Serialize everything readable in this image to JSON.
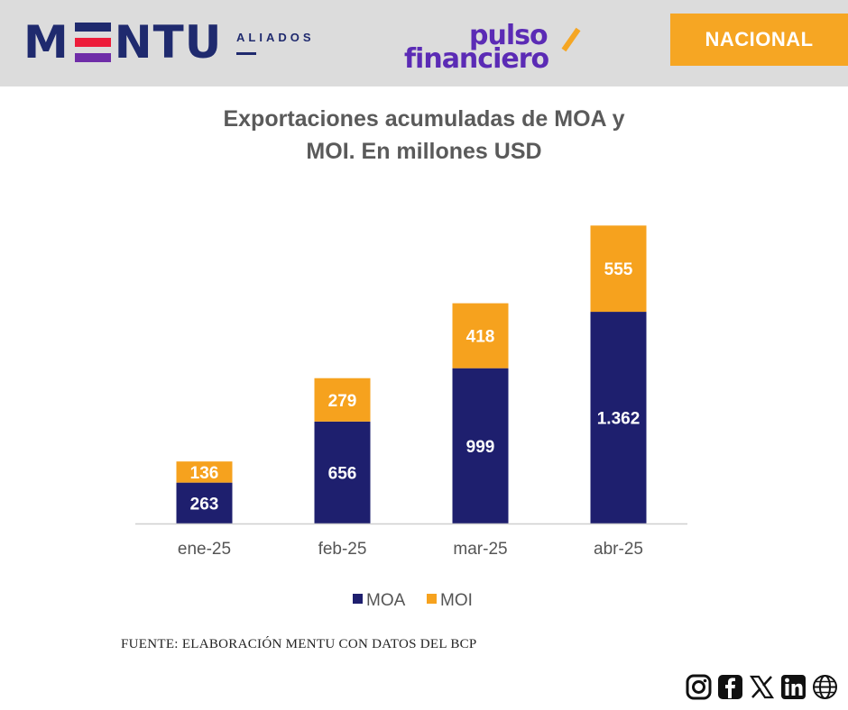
{
  "header": {
    "brand_name": "MENTU",
    "brand_left": "M",
    "brand_right": "NTU",
    "brand_sub": "ALIADOS",
    "partner_line1": "pulso",
    "partner_line2": "financiero",
    "section_badge": "NACIONAL"
  },
  "chart_data": {
    "type": "bar",
    "stacked": true,
    "title_line1": "Exportaciones acumuladas de MOA y",
    "title_line2": "MOI. En millones USD",
    "categories": [
      "ene-25",
      "feb-25",
      "mar-25",
      "abr-25"
    ],
    "series": [
      {
        "name": "MOA",
        "values": [
          263,
          656,
          999,
          1362
        ],
        "labels": [
          "263",
          "656",
          "999",
          "1.362"
        ],
        "color": "#1e1f6e"
      },
      {
        "name": "MOI",
        "values": [
          136,
          279,
          418,
          555
        ],
        "labels": [
          "136",
          "279",
          "418",
          "555"
        ],
        "color": "#f6a21e"
      }
    ],
    "ylim": [
      0,
      2000
    ],
    "grid": false,
    "legend_position": "bottom"
  },
  "source": "FUENTE: ELABORACIÓN MENTU CON DATOS DEL BCP",
  "social_icons": [
    "instagram-icon",
    "facebook-icon",
    "x-icon",
    "linkedin-icon",
    "globe-icon"
  ]
}
